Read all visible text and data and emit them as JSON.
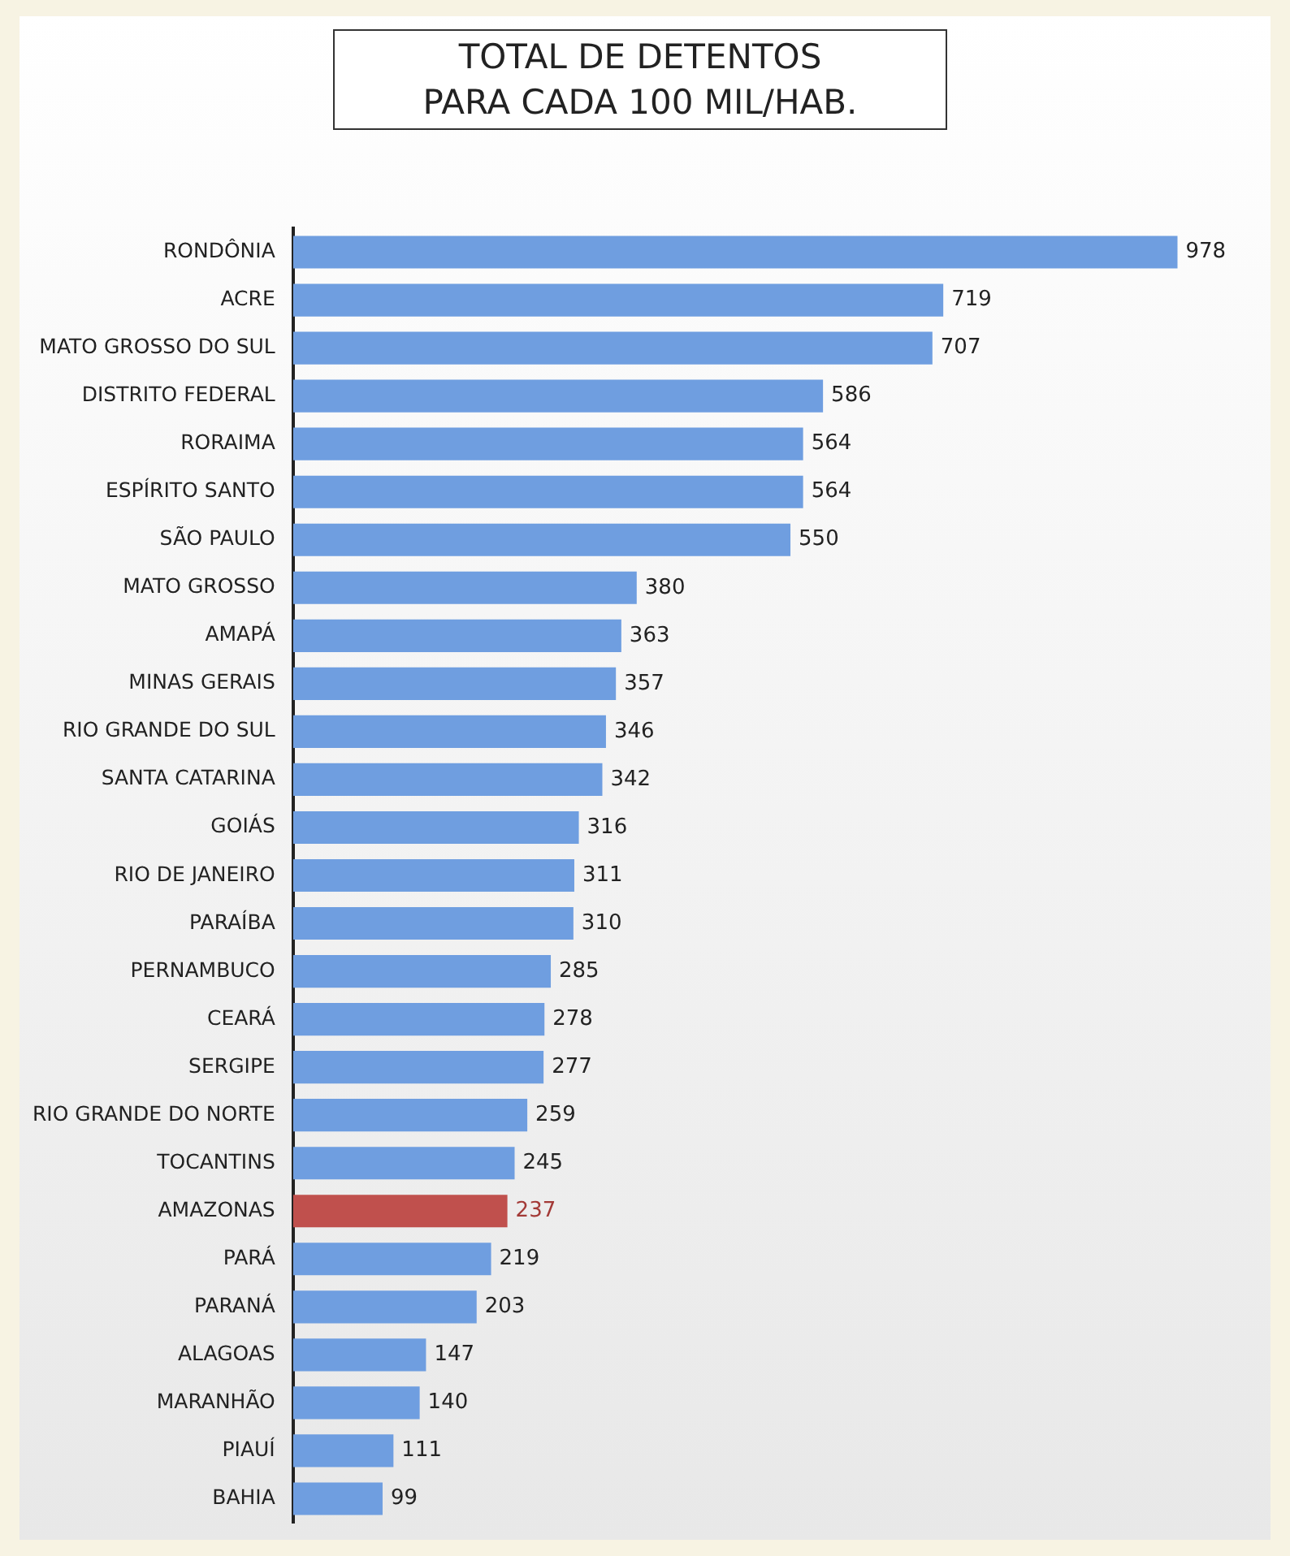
{
  "chart_data": {
    "type": "bar",
    "orientation": "horizontal",
    "title": "TOTAL DE DETENTOS\nPARA CADA 100 MIL/HAB.",
    "categories": [
      "RONDÔNIA",
      "ACRE",
      "MATO GROSSO DO SUL",
      "DISTRITO FEDERAL",
      "RORAIMA",
      "ESPÍRITO SANTO",
      "SÃO PAULO",
      "MATO GROSSO",
      "AMAPÁ",
      "MINAS GERAIS",
      "RIO GRANDE DO SUL",
      "SANTA CATARINA",
      "GOIÁS",
      "RIO DE JANEIRO",
      "PARAÍBA",
      "PERNAMBUCO",
      "CEARÁ",
      "SERGIPE",
      "RIO GRANDE DO NORTE",
      "TOCANTINS",
      "AMAZONAS",
      "PARÁ",
      "PARANÁ",
      "ALAGOAS",
      "MARANHÃO",
      "PIAUÍ",
      "BAHIA"
    ],
    "values": [
      978,
      719,
      707,
      586,
      564,
      564,
      550,
      380,
      363,
      357,
      346,
      342,
      316,
      311,
      310,
      285,
      278,
      277,
      259,
      245,
      237,
      219,
      203,
      147,
      140,
      111,
      99
    ],
    "colors": [
      "#6f9ee0",
      "#6f9ee0",
      "#6f9ee0",
      "#6f9ee0",
      "#6f9ee0",
      "#6f9ee0",
      "#6f9ee0",
      "#6f9ee0",
      "#6f9ee0",
      "#6f9ee0",
      "#6f9ee0",
      "#6f9ee0",
      "#6f9ee0",
      "#6f9ee0",
      "#6f9ee0",
      "#6f9ee0",
      "#6f9ee0",
      "#6f9ee0",
      "#6f9ee0",
      "#6f9ee0",
      "#c0504d",
      "#6f9ee0",
      "#6f9ee0",
      "#6f9ee0",
      "#6f9ee0",
      "#6f9ee0",
      "#6f9ee0"
    ],
    "tick_labels": "y",
    "data_labels": true
  }
}
